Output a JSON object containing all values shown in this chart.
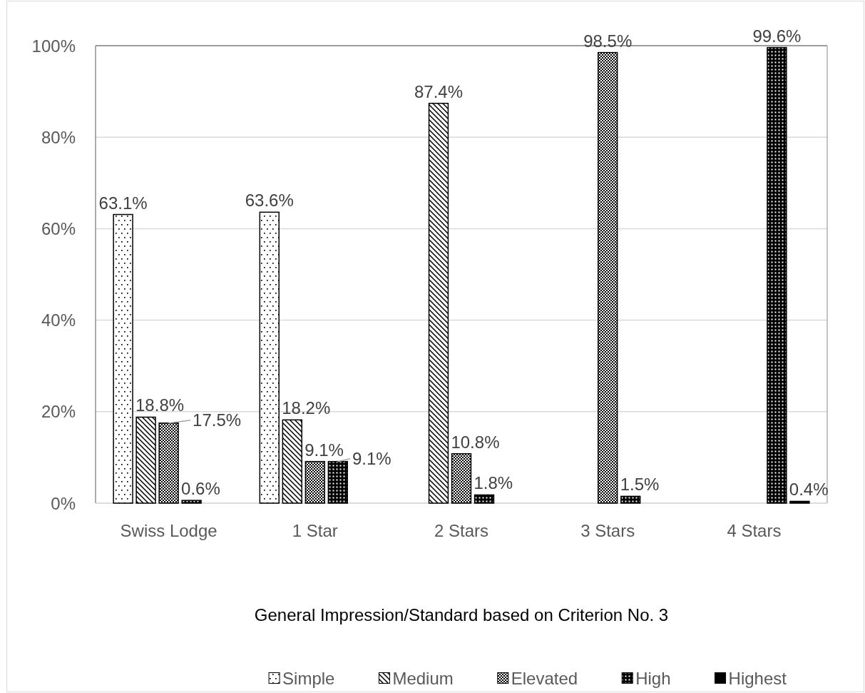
{
  "chart_data": {
    "type": "bar",
    "xlabel": "General Impression/Standard based on Criterion No. 3",
    "categories": [
      "Swiss Lodge",
      "1 Star",
      "2 Stars",
      "3 Stars",
      "4 Stars"
    ],
    "series": [
      {
        "name": "Simple",
        "color": "#000000",
        "values": [
          63.1,
          63.6,
          null,
          null,
          null
        ],
        "value_labels": [
          "63.1%",
          "63.6%",
          null,
          null,
          null
        ]
      },
      {
        "name": "Medium",
        "color": "#000000",
        "values": [
          18.8,
          18.2,
          87.4,
          null,
          null
        ],
        "value_labels": [
          "18.8%",
          "18.2%",
          "87.4%",
          null,
          null
        ]
      },
      {
        "name": "Elevated",
        "color": "#000000",
        "values": [
          17.5,
          9.1,
          10.8,
          98.5,
          null
        ],
        "value_labels": [
          "17.5%",
          "9.1%",
          "10.8%",
          "98.5%",
          null
        ]
      },
      {
        "name": "High",
        "color": "#000000",
        "values": [
          0.6,
          9.1,
          1.8,
          1.5,
          99.6
        ],
        "value_labels": [
          "0.6%",
          "9.1%",
          "1.8%",
          "1.5%",
          "99.6%"
        ]
      },
      {
        "name": "Highest",
        "color": "#000000",
        "values": [
          null,
          null,
          null,
          null,
          0.4
        ],
        "value_labels": [
          null,
          null,
          null,
          null,
          "0.4%"
        ]
      }
    ],
    "ylim": [
      0,
      100
    ],
    "yticks": [
      {
        "value": 0,
        "label": "0%"
      },
      {
        "value": 20,
        "label": "20%"
      },
      {
        "value": 40,
        "label": "40%"
      },
      {
        "value": 60,
        "label": "60%"
      },
      {
        "value": 80,
        "label": "80%"
      },
      {
        "value": 100,
        "label": "100%"
      }
    ],
    "grid": "y",
    "legend": "bottom"
  }
}
